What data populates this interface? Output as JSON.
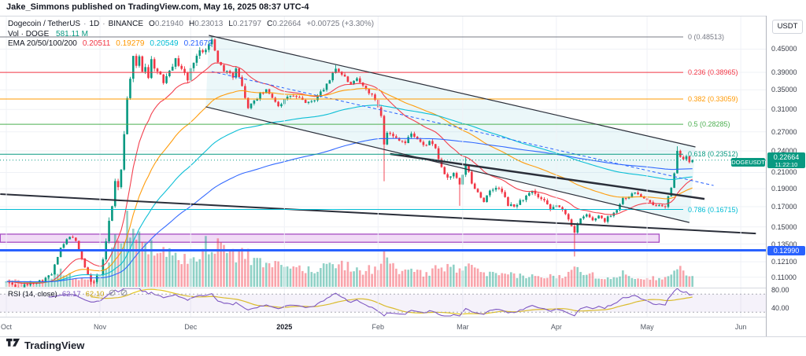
{
  "page": {
    "title": "Jake_Simmons published on TradingView.com, May 16, 2025 08:37 UTC-4"
  },
  "legend": {
    "symbol": "Dogecoin / TetherUS",
    "separator": "·",
    "interval": "1D",
    "exchange": "BINANCE",
    "ohlc": [
      {
        "label": "O",
        "value": "0.21940"
      },
      {
        "label": "H",
        "value": "0.23013"
      },
      {
        "label": "L",
        "value": "0.21797"
      },
      {
        "label": "C",
        "value": "0.22664"
      }
    ],
    "change": "+0.00725 (+3.30%)",
    "volume_label": "Vol · DOGE",
    "volume_value": "581.11 M",
    "ema_label": "EMA 20/50/100/200",
    "ema_values": [
      {
        "value": "0.20511",
        "color": "#F23645"
      },
      {
        "value": "0.19279",
        "color": "#FF9800"
      },
      {
        "value": "0.20549",
        "color": "#00BCD4"
      },
      {
        "value": "0.21672",
        "color": "#2962FF"
      }
    ]
  },
  "rsi_legend": {
    "label": "RSI (14, close)",
    "value": "62.17",
    "value_color": "#7E57C2",
    "ma_value": "62.10",
    "ma_color": "#C9A40A"
  },
  "price_axis": {
    "currency": "USDT",
    "ticks": [
      {
        "label": "0.45000",
        "price": 0.45
      },
      {
        "label": "0.39000",
        "price": 0.39
      },
      {
        "label": "0.35000",
        "price": 0.35
      },
      {
        "label": "0.31000",
        "price": 0.31
      },
      {
        "label": "0.27000",
        "price": 0.27
      },
      {
        "label": "0.24000",
        "price": 0.24
      },
      {
        "label": "0.21000",
        "price": 0.21
      },
      {
        "label": "0.19000",
        "price": 0.19
      },
      {
        "label": "0.17000",
        "price": 0.17
      },
      {
        "label": "0.15000",
        "price": 0.15
      },
      {
        "label": "0.13500",
        "price": 0.135
      },
      {
        "label": "0.12100",
        "price": 0.121
      },
      {
        "label": "0.11000",
        "price": 0.11
      }
    ],
    "rsi_ticks": [
      {
        "label": "80.00",
        "value": 80
      },
      {
        "label": "40.00",
        "value": 40
      }
    ],
    "current_price_label": {
      "value": "0.22664",
      "countdown": "11:22:10",
      "bg": "#089981"
    },
    "level_label": {
      "value": "0.12990",
      "bg": "#2962FF"
    }
  },
  "symbol_tag": {
    "text": "DOGEUSDT",
    "bg": "#089981"
  },
  "time_axis": {
    "labels": [
      {
        "text": "Oct",
        "day": 0,
        "bold": false
      },
      {
        "text": "Nov",
        "day": 31,
        "bold": false
      },
      {
        "text": "Dec",
        "day": 61,
        "bold": false
      },
      {
        "text": "2025",
        "day": 92,
        "bold": true
      },
      {
        "text": "Feb",
        "day": 123,
        "bold": false
      },
      {
        "text": "Mar",
        "day": 151,
        "bold": false
      },
      {
        "text": "Apr",
        "day": 182,
        "bold": false
      },
      {
        "text": "May",
        "day": 212,
        "bold": false
      },
      {
        "text": "Jun",
        "day": 243,
        "bold": false
      }
    ]
  },
  "fib_levels": [
    {
      "label": "0 (0.48513)",
      "price": 0.48513,
      "color": "#787B86"
    },
    {
      "label": "0.236 (0.38965)",
      "price": 0.38965,
      "color": "#F23645"
    },
    {
      "label": "0.382 (0.33059)",
      "price": 0.33059,
      "color": "#FF9800"
    },
    {
      "label": "0.5 (0.28285)",
      "price": 0.28285,
      "color": "#4CAF50"
    },
    {
      "label": "0.618 (0.23512)",
      "price": 0.23512,
      "color": "#089981"
    },
    {
      "label": "0.786 (0.16715)",
      "price": 0.16715,
      "color": "#00BCD4"
    }
  ],
  "footer": {
    "brand": "TradingView"
  },
  "chart_data": {
    "type": "candlestick",
    "symbol": "DOGEUSDT",
    "exchange": "BINANCE",
    "interval": "1D",
    "price_scale": "log",
    "x_domain_days": [
      0,
      243
    ],
    "first_day_label": "Oct 1",
    "last_candle_day": 227,
    "current_price": 0.22664,
    "alert_level": 0.1299,
    "colors": {
      "up": "#089981",
      "down": "#F23645",
      "volume_up": "rgba(8,153,129,0.45)",
      "volume_down": "rgba(242,54,69,0.45)",
      "channel_fill": "rgba(60,180,200,0.10)",
      "trendline": "#2A2E39",
      "band_fill": "rgba(205,125,222,0.28)",
      "band_border": "#A64CC2",
      "alert_line": "#2962FF",
      "rsi_line": "#7E57C2",
      "rsi_ma": "#E2C421",
      "rsi_band": "rgba(126,87,194,0.08)",
      "grid": "#EFF1F6"
    },
    "close_waypoints": [
      [
        0,
        0.107
      ],
      [
        4,
        0.103
      ],
      [
        8,
        0.106
      ],
      [
        12,
        0.108
      ],
      [
        15,
        0.112
      ],
      [
        18,
        0.131
      ],
      [
        21,
        0.142
      ],
      [
        23,
        0.137
      ],
      [
        26,
        0.117
      ],
      [
        28,
        0.106
      ],
      [
        31,
        0.112
      ],
      [
        33,
        0.135
      ],
      [
        34,
        0.158
      ],
      [
        35,
        0.17
      ],
      [
        36,
        0.197
      ],
      [
        37,
        0.19
      ],
      [
        38,
        0.215
      ],
      [
        39,
        0.27
      ],
      [
        40,
        0.33
      ],
      [
        41,
        0.38
      ],
      [
        42,
        0.425
      ],
      [
        43,
        0.4
      ],
      [
        44,
        0.43
      ],
      [
        45,
        0.395
      ],
      [
        46,
        0.405
      ],
      [
        47,
        0.38
      ],
      [
        48,
        0.42
      ],
      [
        50,
        0.39
      ],
      [
        52,
        0.368
      ],
      [
        54,
        0.4
      ],
      [
        56,
        0.42
      ],
      [
        58,
        0.4
      ],
      [
        60,
        0.372
      ],
      [
        62,
        0.42
      ],
      [
        64,
        0.442
      ],
      [
        66,
        0.455
      ],
      [
        67,
        0.462
      ],
      [
        68,
        0.475
      ],
      [
        69,
        0.445
      ],
      [
        70,
        0.42
      ],
      [
        71,
        0.405
      ],
      [
        72,
        0.39
      ],
      [
        73,
        0.4
      ],
      [
        74,
        0.385
      ],
      [
        75,
        0.375
      ],
      [
        76,
        0.395
      ],
      [
        77,
        0.385
      ],
      [
        78,
        0.36
      ],
      [
        79,
        0.33
      ],
      [
        80,
        0.315
      ],
      [
        82,
        0.325
      ],
      [
        84,
        0.34
      ],
      [
        86,
        0.348
      ],
      [
        88,
        0.335
      ],
      [
        90,
        0.318
      ],
      [
        92,
        0.328
      ],
      [
        94,
        0.338
      ],
      [
        96,
        0.334
      ],
      [
        98,
        0.328
      ],
      [
        100,
        0.322
      ],
      [
        102,
        0.33
      ],
      [
        104,
        0.345
      ],
      [
        106,
        0.36
      ],
      [
        107,
        0.372
      ],
      [
        108,
        0.39
      ],
      [
        109,
        0.4
      ],
      [
        110,
        0.392
      ],
      [
        112,
        0.378
      ],
      [
        114,
        0.36
      ],
      [
        116,
        0.373
      ],
      [
        118,
        0.358
      ],
      [
        120,
        0.345
      ],
      [
        122,
        0.33
      ],
      [
        124,
        0.3
      ],
      [
        125,
        0.252
      ],
      [
        126,
        0.27
      ],
      [
        128,
        0.262
      ],
      [
        130,
        0.258
      ],
      [
        132,
        0.252
      ],
      [
        134,
        0.268
      ],
      [
        136,
        0.258
      ],
      [
        138,
        0.248
      ],
      [
        140,
        0.253
      ],
      [
        142,
        0.243
      ],
      [
        144,
        0.215
      ],
      [
        146,
        0.203
      ],
      [
        148,
        0.208
      ],
      [
        150,
        0.195
      ],
      [
        151,
        0.205
      ],
      [
        152,
        0.22
      ],
      [
        153,
        0.21
      ],
      [
        154,
        0.196
      ],
      [
        156,
        0.186
      ],
      [
        158,
        0.176
      ],
      [
        160,
        0.186
      ],
      [
        162,
        0.192
      ],
      [
        164,
        0.186
      ],
      [
        166,
        0.172
      ],
      [
        168,
        0.17
      ],
      [
        170,
        0.176
      ],
      [
        172,
        0.181
      ],
      [
        174,
        0.186
      ],
      [
        176,
        0.18
      ],
      [
        178,
        0.175
      ],
      [
        180,
        0.167
      ],
      [
        182,
        0.172
      ],
      [
        184,
        0.166
      ],
      [
        186,
        0.158
      ],
      [
        188,
        0.146
      ],
      [
        189,
        0.152
      ],
      [
        190,
        0.157
      ],
      [
        192,
        0.162
      ],
      [
        194,
        0.156
      ],
      [
        196,
        0.161
      ],
      [
        198,
        0.156
      ],
      [
        200,
        0.162
      ],
      [
        202,
        0.167
      ],
      [
        204,
        0.179
      ],
      [
        206,
        0.181
      ],
      [
        208,
        0.186
      ],
      [
        210,
        0.181
      ],
      [
        212,
        0.176
      ],
      [
        214,
        0.171
      ],
      [
        216,
        0.173
      ],
      [
        218,
        0.171
      ],
      [
        220,
        0.19
      ],
      [
        221,
        0.208
      ],
      [
        222,
        0.238
      ],
      [
        223,
        0.233
      ],
      [
        224,
        0.229
      ],
      [
        225,
        0.232
      ],
      [
        226,
        0.222
      ],
      [
        227,
        0.2266
      ]
    ],
    "volume_rel_waypoints": [
      [
        0,
        0.1
      ],
      [
        8,
        0.07
      ],
      [
        14,
        0.1
      ],
      [
        18,
        0.22
      ],
      [
        22,
        0.14
      ],
      [
        27,
        0.1
      ],
      [
        31,
        0.14
      ],
      [
        34,
        0.45
      ],
      [
        36,
        0.75
      ],
      [
        38,
        0.55
      ],
      [
        40,
        0.9
      ],
      [
        42,
        1.0
      ],
      [
        44,
        0.8
      ],
      [
        46,
        0.6
      ],
      [
        48,
        0.7
      ],
      [
        50,
        0.55
      ],
      [
        53,
        0.48
      ],
      [
        56,
        0.44
      ],
      [
        60,
        0.4
      ],
      [
        63,
        0.5
      ],
      [
        66,
        0.58
      ],
      [
        68,
        0.66
      ],
      [
        70,
        0.58
      ],
      [
        73,
        0.52
      ],
      [
        76,
        0.44
      ],
      [
        79,
        0.5
      ],
      [
        82,
        0.38
      ],
      [
        86,
        0.3
      ],
      [
        90,
        0.3
      ],
      [
        94,
        0.28
      ],
      [
        98,
        0.26
      ],
      [
        102,
        0.24
      ],
      [
        106,
        0.3
      ],
      [
        108,
        0.4
      ],
      [
        110,
        0.34
      ],
      [
        114,
        0.28
      ],
      [
        118,
        0.24
      ],
      [
        122,
        0.26
      ],
      [
        125,
        0.42
      ],
      [
        128,
        0.28
      ],
      [
        132,
        0.22
      ],
      [
        136,
        0.2
      ],
      [
        140,
        0.18
      ],
      [
        144,
        0.32
      ],
      [
        148,
        0.26
      ],
      [
        152,
        0.3
      ],
      [
        156,
        0.22
      ],
      [
        160,
        0.18
      ],
      [
        164,
        0.16
      ],
      [
        168,
        0.17
      ],
      [
        172,
        0.16
      ],
      [
        176,
        0.14
      ],
      [
        180,
        0.15
      ],
      [
        184,
        0.15
      ],
      [
        188,
        0.34
      ],
      [
        192,
        0.2
      ],
      [
        196,
        0.15
      ],
      [
        200,
        0.13
      ],
      [
        204,
        0.19
      ],
      [
        208,
        0.15
      ],
      [
        212,
        0.13
      ],
      [
        216,
        0.12
      ],
      [
        220,
        0.2
      ],
      [
        221,
        0.26
      ],
      [
        222,
        0.34
      ],
      [
        223,
        0.28
      ],
      [
        224,
        0.22
      ],
      [
        226,
        0.17
      ],
      [
        227,
        0.13
      ]
    ],
    "notable_wicks": [
      {
        "day": 68,
        "high": 0.4851
      },
      {
        "day": 109,
        "high": 0.408
      },
      {
        "day": 125,
        "low": 0.199
      },
      {
        "day": 150,
        "low": 0.171
      },
      {
        "day": 152,
        "high": 0.232
      },
      {
        "day": 188,
        "low": 0.125
      },
      {
        "day": 222,
        "high": 0.247
      }
    ],
    "overlays": {
      "emas": [
        {
          "period": 20,
          "color": "#F23645"
        },
        {
          "period": 50,
          "color": "#FF9800"
        },
        {
          "period": 100,
          "color": "#00BCD4"
        },
        {
          "period": 200,
          "color": "#2962FF"
        }
      ],
      "channel": {
        "upper": [
          [
            67,
            0.4899
          ],
          [
            228,
            0.2459
          ]
        ],
        "lower": [
          [
            66,
            0.315
          ],
          [
            226,
            0.1542
          ]
        ],
        "mid_dashed": [
          [
            68,
            0.3917
          ],
          [
            234,
            0.1938
          ]
        ]
      },
      "trendlines": [
        {
          "from": [
            -2,
            0.1837
          ],
          "to": [
            248,
            0.1441
          ],
          "width": 2
        },
        {
          "from": [
            127,
            0.2355
          ],
          "to": [
            231,
            0.1784
          ],
          "width": 2.5
        }
      ],
      "purple_band": {
        "price_top": 0.1435,
        "price_bottom": 0.1365,
        "day_start": -2,
        "day_end": 216
      },
      "rsi": {
        "period": 14,
        "last": 62.17,
        "ma_last": 62.1,
        "dashed_levels": [
          70,
          30
        ]
      }
    }
  }
}
